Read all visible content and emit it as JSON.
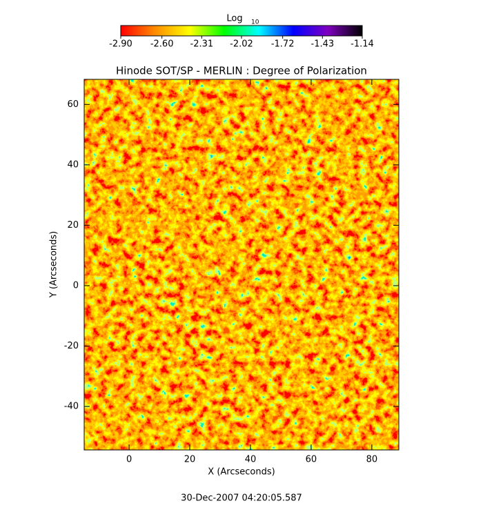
{
  "chart_data": {
    "type": "heatmap",
    "title": "Hinode SOT/SP - MERLIN : Degree of Polarization",
    "xlabel": "X (Arcseconds)",
    "ylabel": "Y (Arcseconds)",
    "xlim": [
      -14.8,
      88.9
    ],
    "ylim": [
      -54.4,
      68.3
    ],
    "xticks": [
      0,
      20,
      40,
      60,
      80
    ],
    "yticks": [
      -40,
      -20,
      0,
      20,
      40,
      60
    ],
    "colorbar": {
      "title": "Log",
      "title_subscript": "10",
      "lim": [
        -2.9,
        -1.14
      ],
      "ticks": [
        {
          "value": -2.9,
          "label": "-2.90"
        },
        {
          "value": -2.6,
          "label": "-2.60"
        },
        {
          "value": -2.31,
          "label": "-2.31"
        },
        {
          "value": -2.02,
          "label": "-2.02"
        },
        {
          "value": -1.72,
          "label": "-1.72"
        },
        {
          "value": -1.43,
          "label": "-1.43"
        },
        {
          "value": -1.14,
          "label": "-1.14"
        }
      ],
      "colors": [
        "#ff0000",
        "#ff8c00",
        "#ffff00",
        "#00ff00",
        "#00ffff",
        "#0000ff",
        "#8000c0",
        "#000000"
      ]
    },
    "footnote": "30-Dec-2007 04:20:05.587"
  }
}
